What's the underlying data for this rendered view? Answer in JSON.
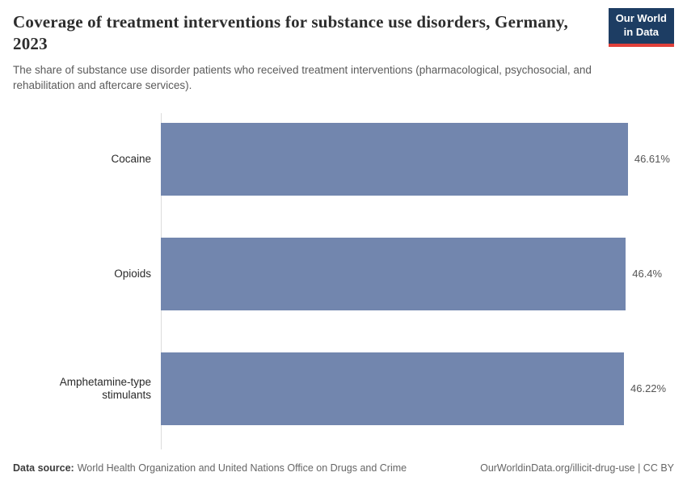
{
  "logo": {
    "line1": "Our World",
    "line2": "in Data",
    "bg_color": "#1d3d63",
    "accent_color": "#e0403a"
  },
  "chart_data": {
    "type": "bar",
    "orientation": "horizontal",
    "title": "Coverage of treatment interventions for substance use disorders, Germany, 2023",
    "subtitle": "The share of substance use disorder patients who received treatment interventions (pharmacological, psychosocial, and rehabilitation and aftercare services).",
    "categories": [
      "Cocaine",
      "Opioids",
      "Amphetamine-type stimulants"
    ],
    "values": [
      46.61,
      46.4,
      46.22
    ],
    "value_labels": [
      "46.61%",
      "46.4%",
      "46.22%"
    ],
    "unit": "%",
    "xlim": [
      0,
      46.61
    ],
    "bar_color": "#7286ae",
    "grid": false,
    "legend": "none"
  },
  "footer": {
    "source_label": "Data source:",
    "source_text": "World Health Organization and United Nations Office on Drugs and Crime",
    "link_text": "OurWorldinData.org/illicit-drug-use | CC BY"
  }
}
